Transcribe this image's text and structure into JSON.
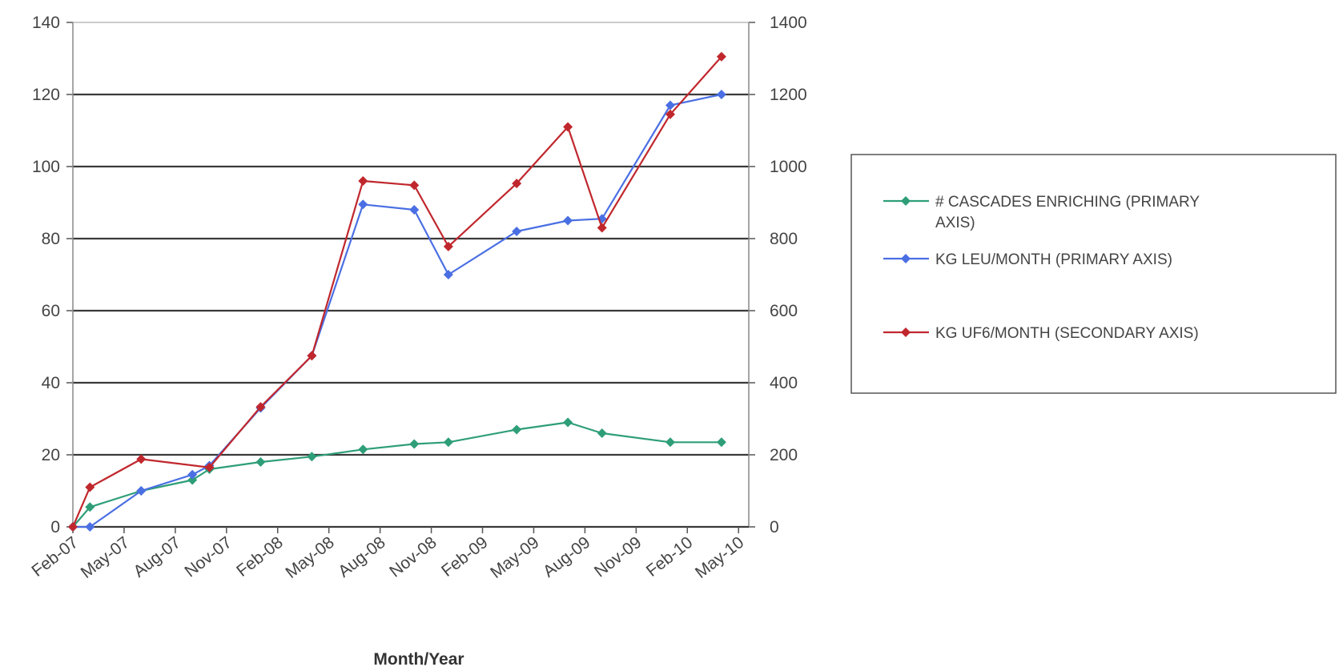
{
  "chart_data": {
    "type": "line",
    "title": "",
    "xlabel": "Month/Year",
    "ylabel": "",
    "y2label": "",
    "ylim": [
      0,
      140
    ],
    "y2lim": [
      0,
      1400
    ],
    "yticks": [
      "0",
      "20",
      "40",
      "60",
      "80",
      "100",
      "120",
      "140"
    ],
    "y2ticks": [
      "0",
      "200",
      "400",
      "600",
      "800",
      "1000",
      "1200",
      "1400"
    ],
    "xticks": [
      "Feb-07",
      "May-07",
      "Aug-07",
      "Nov-07",
      "Feb-08",
      "May-08",
      "Aug-08",
      "Nov-08",
      "Feb-09",
      "May-09",
      "Aug-09",
      "Nov-09",
      "Feb-10",
      "May-10"
    ],
    "grid": "horizontal",
    "legend_position": "right",
    "series": [
      {
        "name": "# CASCADES ENRICHING (PRIMARY AXIS)",
        "axis": "primary",
        "color": "#2e9e78",
        "marker": "diamond",
        "x": [
          "Feb-07",
          "Mar-07",
          "Jun-07",
          "Sep-07",
          "Oct-07",
          "Jan-08",
          "Apr-08",
          "Jul-08",
          "Oct-08",
          "Dec-08",
          "Apr-09",
          "Jul-09",
          "Sep-09",
          "Jan-10",
          "Apr-10"
        ],
        "values": [
          0,
          5.5,
          10,
          13,
          16,
          18,
          19.5,
          21.5,
          23,
          23.5,
          27,
          29,
          26,
          23.5,
          23.5
        ]
      },
      {
        "name": "KG LEU/MONTH (PRIMARY AXIS)",
        "axis": "primary",
        "color": "#4a6fe3",
        "marker": "diamond",
        "x": [
          "Feb-07",
          "Mar-07",
          "Jun-07",
          "Sep-07",
          "Oct-07",
          "Jan-08",
          "Apr-08",
          "Jul-08",
          "Oct-08",
          "Dec-08",
          "Apr-09",
          "Jul-09",
          "Sep-09",
          "Jan-10",
          "Apr-10"
        ],
        "values": [
          0,
          0,
          10,
          14.5,
          17,
          33,
          47.5,
          89.5,
          88,
          70,
          82,
          85,
          85.5,
          117,
          120
        ]
      },
      {
        "name": "KG UF6/MONTH (SECONDARY AXIS)",
        "axis": "secondary",
        "color": "#c0272d",
        "marker": "diamond",
        "x": [
          "Feb-07",
          "Mar-07",
          "Jun-07",
          "Oct-07",
          "Jan-08",
          "Apr-08",
          "Jul-08",
          "Oct-08",
          "Dec-08",
          "Apr-09",
          "Jul-09",
          "Sep-09",
          "Jan-10",
          "Apr-10"
        ],
        "values": [
          0,
          110,
          188,
          165,
          333,
          475,
          960,
          948,
          778,
          953,
          1110,
          830,
          1145,
          1305
        ]
      }
    ]
  }
}
